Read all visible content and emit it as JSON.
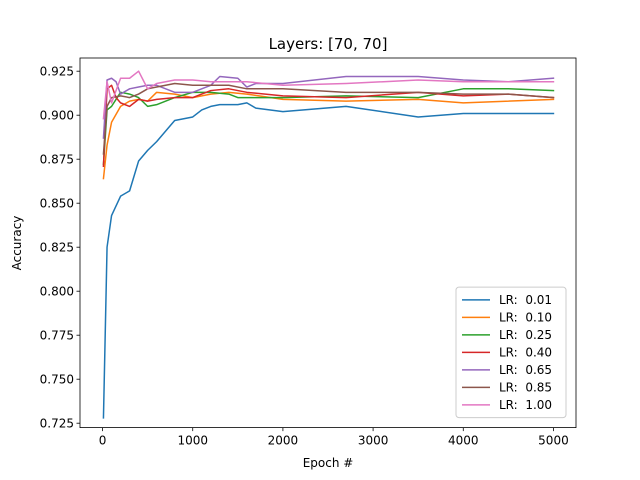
{
  "chart_data": {
    "type": "line",
    "title": "Layers: [70, 70]",
    "xlabel": "Epoch #",
    "ylabel": "Accuracy",
    "xlim": [
      -250,
      5250
    ],
    "ylim": [
      0.7225,
      0.9325
    ],
    "xticks": [
      0,
      1000,
      2000,
      3000,
      4000,
      5000
    ],
    "xtick_labels": [
      "0",
      "1000",
      "2000",
      "3000",
      "4000",
      "5000"
    ],
    "yticks": [
      0.725,
      0.75,
      0.775,
      0.8,
      0.825,
      0.85,
      0.875,
      0.9,
      0.925
    ],
    "ytick_labels": [
      "0.725",
      "0.750",
      "0.775",
      "0.800",
      "0.825",
      "0.850",
      "0.875",
      "0.900",
      "0.925"
    ],
    "grid": false,
    "legend_position": "lower-right",
    "series": [
      {
        "name": "LR:  0.01",
        "color": "#1f77b4",
        "points": [
          [
            10,
            0.728
          ],
          [
            50,
            0.825
          ],
          [
            100,
            0.843
          ],
          [
            200,
            0.854
          ],
          [
            300,
            0.857
          ],
          [
            400,
            0.874
          ],
          [
            500,
            0.88
          ],
          [
            600,
            0.885
          ],
          [
            800,
            0.897
          ],
          [
            1000,
            0.899
          ],
          [
            1100,
            0.903
          ],
          [
            1200,
            0.905
          ],
          [
            1300,
            0.906
          ],
          [
            1500,
            0.906
          ],
          [
            1600,
            0.907
          ],
          [
            1700,
            0.904
          ],
          [
            2000,
            0.902
          ],
          [
            2700,
            0.905
          ],
          [
            3500,
            0.899
          ],
          [
            4000,
            0.901
          ],
          [
            5000,
            0.901
          ]
        ]
      },
      {
        "name": "LR:  0.10",
        "color": "#ff7f0e",
        "points": [
          [
            10,
            0.864
          ],
          [
            50,
            0.883
          ],
          [
            100,
            0.896
          ],
          [
            200,
            0.905
          ],
          [
            300,
            0.908
          ],
          [
            400,
            0.909
          ],
          [
            500,
            0.908
          ],
          [
            600,
            0.913
          ],
          [
            800,
            0.912
          ],
          [
            1000,
            0.91
          ],
          [
            1200,
            0.912
          ],
          [
            1400,
            0.913
          ],
          [
            1600,
            0.912
          ],
          [
            2000,
            0.909
          ],
          [
            2700,
            0.908
          ],
          [
            3500,
            0.909
          ],
          [
            4000,
            0.907
          ],
          [
            5000,
            0.909
          ]
        ]
      },
      {
        "name": "LR:  0.25",
        "color": "#2ca02c",
        "points": [
          [
            10,
            0.872
          ],
          [
            50,
            0.903
          ],
          [
            100,
            0.905
          ],
          [
            200,
            0.913
          ],
          [
            300,
            0.912
          ],
          [
            400,
            0.91
          ],
          [
            500,
            0.905
          ],
          [
            600,
            0.906
          ],
          [
            800,
            0.91
          ],
          [
            1000,
            0.913
          ],
          [
            1200,
            0.913
          ],
          [
            1400,
            0.912
          ],
          [
            1500,
            0.91
          ],
          [
            2000,
            0.91
          ],
          [
            2700,
            0.911
          ],
          [
            3500,
            0.91
          ],
          [
            4000,
            0.915
          ],
          [
            4500,
            0.915
          ],
          [
            5000,
            0.914
          ]
        ]
      },
      {
        "name": "LR:  0.40",
        "color": "#d62728",
        "points": [
          [
            10,
            0.871
          ],
          [
            50,
            0.915
          ],
          [
            100,
            0.917
          ],
          [
            150,
            0.91
          ],
          [
            200,
            0.907
          ],
          [
            300,
            0.905
          ],
          [
            400,
            0.909
          ],
          [
            500,
            0.908
          ],
          [
            600,
            0.909
          ],
          [
            800,
            0.91
          ],
          [
            1000,
            0.91
          ],
          [
            1200,
            0.914
          ],
          [
            1400,
            0.915
          ],
          [
            1600,
            0.913
          ],
          [
            2000,
            0.911
          ],
          [
            2700,
            0.91
          ],
          [
            3500,
            0.913
          ],
          [
            4000,
            0.911
          ],
          [
            4500,
            0.912
          ],
          [
            5000,
            0.91
          ]
        ]
      },
      {
        "name": "LR:  0.65",
        "color": "#9467bd",
        "points": [
          [
            10,
            0.887
          ],
          [
            50,
            0.92
          ],
          [
            100,
            0.921
          ],
          [
            150,
            0.919
          ],
          [
            200,
            0.912
          ],
          [
            300,
            0.915
          ],
          [
            400,
            0.916
          ],
          [
            500,
            0.917
          ],
          [
            600,
            0.917
          ],
          [
            800,
            0.913
          ],
          [
            1000,
            0.913
          ],
          [
            1200,
            0.917
          ],
          [
            1300,
            0.922
          ],
          [
            1500,
            0.921
          ],
          [
            1600,
            0.916
          ],
          [
            1700,
            0.918
          ],
          [
            2000,
            0.918
          ],
          [
            2700,
            0.922
          ],
          [
            3500,
            0.922
          ],
          [
            4000,
            0.92
          ],
          [
            4500,
            0.919
          ],
          [
            5000,
            0.921
          ]
        ]
      },
      {
        "name": "LR:  0.85",
        "color": "#8c564b",
        "points": [
          [
            10,
            0.878
          ],
          [
            50,
            0.905
          ],
          [
            100,
            0.91
          ],
          [
            200,
            0.911
          ],
          [
            300,
            0.91
          ],
          [
            400,
            0.912
          ],
          [
            500,
            0.915
          ],
          [
            600,
            0.916
          ],
          [
            800,
            0.918
          ],
          [
            1000,
            0.917
          ],
          [
            1200,
            0.917
          ],
          [
            1400,
            0.917
          ],
          [
            1600,
            0.915
          ],
          [
            2000,
            0.915
          ],
          [
            2700,
            0.913
          ],
          [
            3500,
            0.913
          ],
          [
            4000,
            0.912
          ],
          [
            4500,
            0.912
          ],
          [
            5000,
            0.91
          ]
        ]
      },
      {
        "name": "LR:  1.00",
        "color": "#e377c2",
        "points": [
          [
            10,
            0.898
          ],
          [
            50,
            0.919
          ],
          [
            100,
            0.907
          ],
          [
            200,
            0.921
          ],
          [
            300,
            0.921
          ],
          [
            400,
            0.925
          ],
          [
            450,
            0.92
          ],
          [
            500,
            0.915
          ],
          [
            600,
            0.918
          ],
          [
            800,
            0.92
          ],
          [
            1000,
            0.92
          ],
          [
            1200,
            0.919
          ],
          [
            1400,
            0.919
          ],
          [
            1600,
            0.919
          ],
          [
            2000,
            0.917
          ],
          [
            2700,
            0.918
          ],
          [
            3500,
            0.92
          ],
          [
            4000,
            0.919
          ],
          [
            4500,
            0.919
          ],
          [
            5000,
            0.919
          ]
        ]
      }
    ]
  }
}
